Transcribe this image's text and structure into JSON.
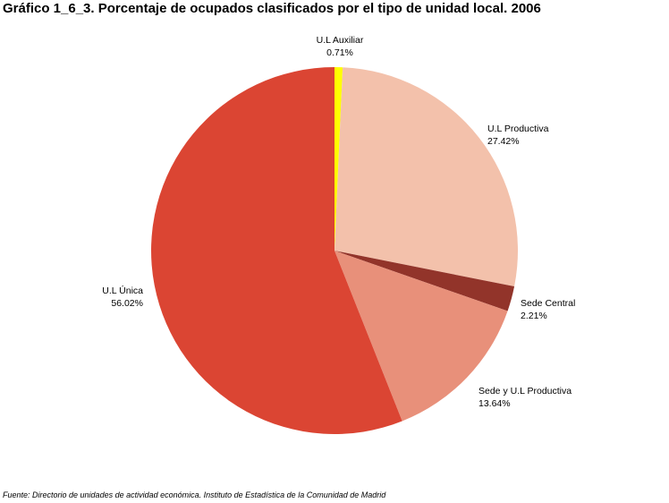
{
  "chart_data": {
    "type": "pie",
    "title": "Gráfico 1_6_3. Porcentaje de ocupados clasificados por el tipo de unidad local. 2006",
    "source": "Fuente: Directorio de unidades de actividad económica. Instituto de Estadística de la Comunidad de Madrid",
    "slices": [
      {
        "label": "U.L Auxiliar",
        "value": 0.71,
        "value_label": "0.71%",
        "color": "#FFFF00"
      },
      {
        "label": "U.L Productiva",
        "value": 27.42,
        "value_label": "27.42%",
        "color": "#F3C1AB"
      },
      {
        "label": "Sede Central",
        "value": 2.21,
        "value_label": "2.21%",
        "color": "#92342A"
      },
      {
        "label": "Sede y U.L Productiva",
        "value": 13.64,
        "value_label": "13.64%",
        "color": "#E8907A"
      },
      {
        "label": "U.L Única",
        "value": 56.02,
        "value_label": "56.02%",
        "color": "#DB4533"
      }
    ],
    "start_angle": "12 o'clock",
    "direction": "clockwise",
    "legend": "none"
  }
}
